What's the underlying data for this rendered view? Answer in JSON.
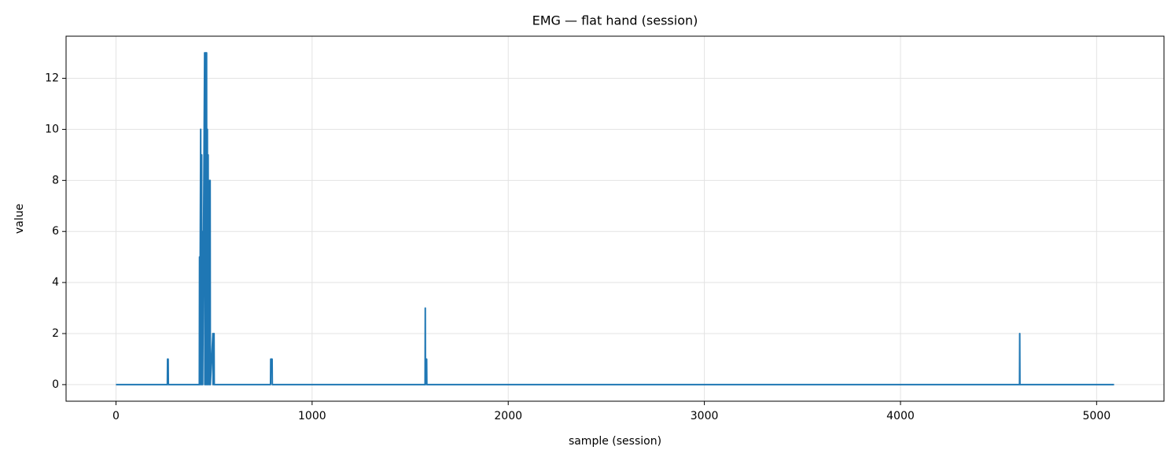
{
  "chart_data": {
    "type": "line",
    "title": "EMG — flat hand (session)",
    "xlabel": "sample (session)",
    "ylabel": "value",
    "x": [
      0,
      262,
      263,
      266,
      267,
      425,
      426,
      427,
      432,
      433,
      437,
      438,
      441,
      442,
      452,
      453,
      458,
      459,
      462,
      463,
      466,
      467,
      470,
      471,
      476,
      477,
      480,
      481,
      494,
      495,
      500,
      501,
      788,
      789,
      796,
      797,
      1576,
      1577,
      1578,
      1580,
      1584,
      1585,
      4607,
      4608,
      4609,
      5089
    ],
    "series": [
      {
        "name": "EMG",
        "color": "#1f77b4",
        "values": [
          0,
          0,
          1,
          1,
          0,
          0,
          5,
          0,
          10,
          0,
          9,
          0,
          6,
          0,
          13,
          0,
          13,
          0,
          13,
          0,
          10,
          0,
          9,
          0,
          8,
          0,
          8,
          0,
          2,
          0,
          2,
          0,
          0,
          1,
          1,
          0,
          0,
          3,
          0,
          1,
          1,
          0,
          0,
          2,
          0,
          0
        ]
      }
    ],
    "xlim": [
      -254.5,
      5343.5
    ],
    "ylim": [
      -0.65,
      13.65
    ],
    "xticks": [
      0,
      1000,
      2000,
      3000,
      4000,
      5000
    ],
    "yticks": [
      0,
      2,
      4,
      6,
      8,
      10,
      12
    ],
    "grid": true
  }
}
